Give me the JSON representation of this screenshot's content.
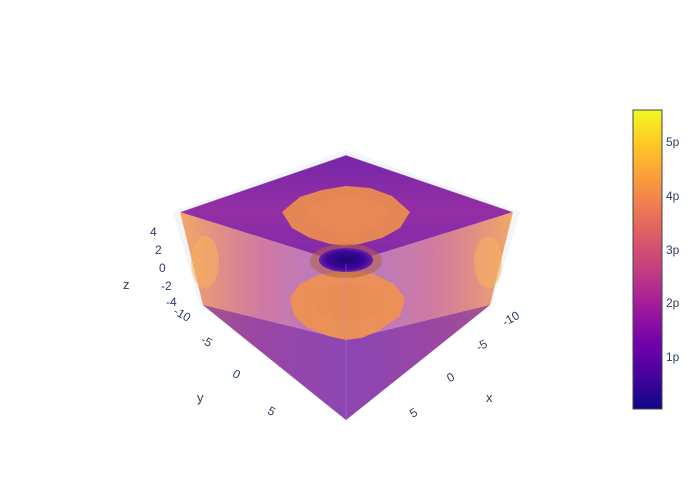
{
  "chart_data": {
    "type": "volume",
    "title": "",
    "axes": {
      "x": {
        "label": "x",
        "ticks": [
          "-10",
          "-5",
          "0",
          "5"
        ],
        "range": [
          -10,
          10
        ]
      },
      "y": {
        "label": "y",
        "ticks": [
          "-10",
          "-5",
          "0",
          "5"
        ],
        "range": [
          -10,
          10
        ]
      },
      "z": {
        "label": "z",
        "ticks": [
          "-4",
          "-2",
          "0",
          "2",
          "4"
        ],
        "range": [
          -5,
          5
        ]
      }
    },
    "colorbar": {
      "ticks": [
        "1p",
        "2p",
        "3p",
        "4p",
        "5p"
      ],
      "tick_values": [
        1,
        2,
        3,
        4,
        5
      ],
      "range": [
        0.05,
        5.6
      ],
      "colorscale": "plasma",
      "colors": [
        "#0d0887",
        "#46039f",
        "#7201a8",
        "#9c179e",
        "#bd3786",
        "#d8576b",
        "#ed7953",
        "#fb9f3a",
        "#fdca26",
        "#f0f921"
      ]
    },
    "description_values": {
      "center_hole_value": 0.1,
      "lobe_value": 4.0,
      "corner_value": 1.5
    }
  }
}
